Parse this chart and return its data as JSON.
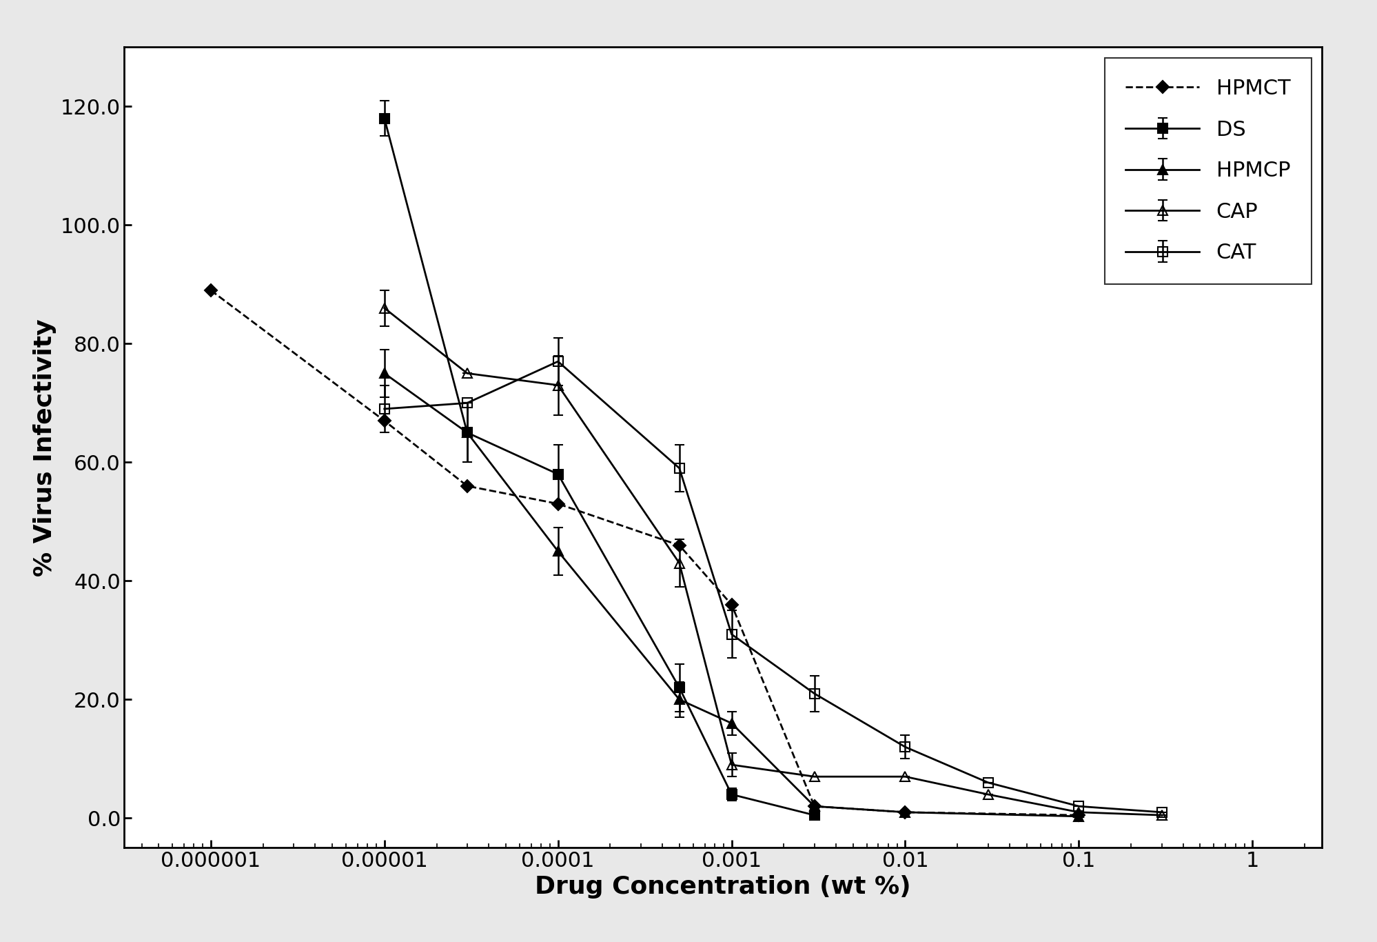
{
  "title": "",
  "xlabel": "Drug Concentration (wt %)",
  "ylabel": "% Virus Infectivity",
  "ylim": [
    -5,
    130
  ],
  "yticks": [
    0.0,
    20.0,
    40.0,
    60.0,
    80.0,
    100.0,
    120.0
  ],
  "xtick_labels": [
    "0.000001",
    "0.00001",
    "0.0001",
    "0.001",
    "0.01",
    "0.1",
    "1"
  ],
  "xtick_vals": [
    1e-06,
    1e-05,
    0.0001,
    0.001,
    0.01,
    0.1,
    1
  ],
  "series": {
    "HPMCT": {
      "x": [
        1e-06,
        1e-05,
        3e-05,
        0.0001,
        0.0005,
        0.001,
        0.003,
        0.01,
        0.1
      ],
      "y": [
        89,
        67,
        56,
        53,
        46,
        36,
        2,
        1,
        0.5
      ],
      "yerr": [
        null,
        null,
        null,
        null,
        null,
        null,
        null,
        null,
        null
      ],
      "marker": "D",
      "fillstyle": "full",
      "linestyle": "--",
      "color": "#000000",
      "markersize": 9
    },
    "DS": {
      "x": [
        1e-05,
        3e-05,
        0.0001,
        0.0005,
        0.001,
        0.003
      ],
      "y": [
        118,
        65,
        58,
        22,
        4,
        0.5
      ],
      "yerr": [
        3,
        5,
        5,
        4,
        1,
        null
      ],
      "marker": "s",
      "fillstyle": "full",
      "linestyle": "-",
      "color": "#000000",
      "markersize": 10
    },
    "HPMCP": {
      "x": [
        1e-05,
        3e-05,
        0.0001,
        0.0005,
        0.001,
        0.003,
        0.01,
        0.1
      ],
      "y": [
        75,
        65,
        45,
        20,
        16,
        2,
        1,
        0.3
      ],
      "yerr": [
        4,
        5,
        4,
        3,
        2,
        null,
        null,
        null
      ],
      "marker": "^",
      "fillstyle": "full",
      "linestyle": "-",
      "color": "#000000",
      "markersize": 10
    },
    "CAP": {
      "x": [
        1e-05,
        3e-05,
        0.0001,
        0.0005,
        0.001,
        0.003,
        0.01,
        0.03,
        0.1,
        0.3
      ],
      "y": [
        86,
        75,
        73,
        43,
        9,
        7,
        7,
        4,
        1,
        0.5
      ],
      "yerr": [
        3,
        null,
        5,
        4,
        2,
        null,
        null,
        null,
        null,
        null
      ],
      "marker": "^",
      "fillstyle": "none",
      "linestyle": "-",
      "color": "#000000",
      "markersize": 10
    },
    "CAT": {
      "x": [
        1e-05,
        3e-05,
        0.0001,
        0.0005,
        0.001,
        0.003,
        0.01,
        0.03,
        0.1,
        0.3
      ],
      "y": [
        69,
        70,
        77,
        59,
        31,
        21,
        12,
        6,
        2,
        1
      ],
      "yerr": [
        4,
        null,
        4,
        4,
        4,
        3,
        2,
        null,
        null,
        null
      ],
      "marker": "s",
      "fillstyle": "none",
      "linestyle": "-",
      "color": "#000000",
      "markersize": 10
    }
  },
  "background_color": "#ffffff",
  "outer_bg": "#e8e8e8",
  "figsize": [
    19.98,
    13.66
  ],
  "dpi": 100
}
